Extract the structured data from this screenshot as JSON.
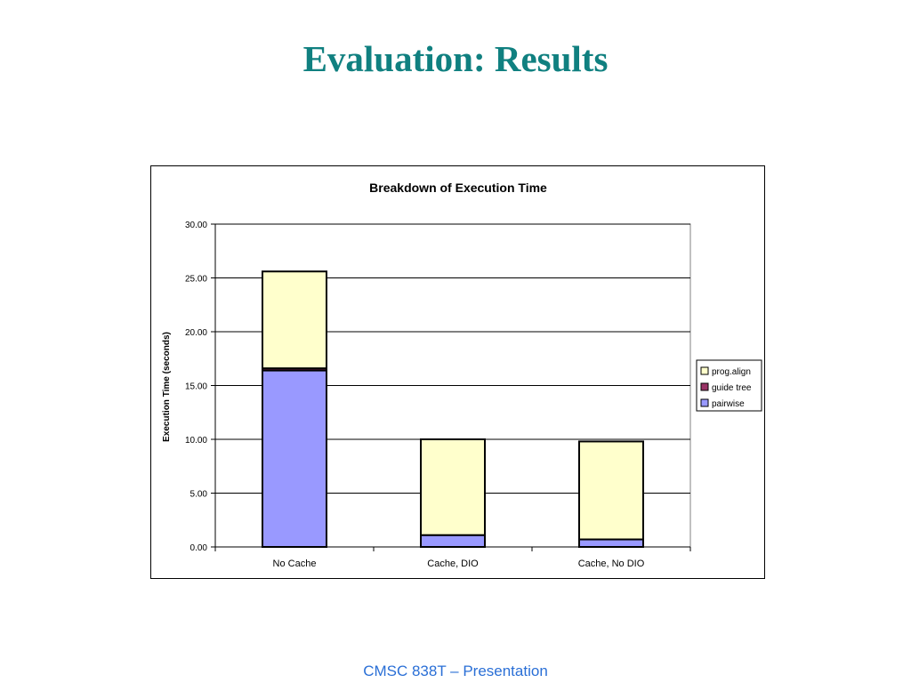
{
  "slide": {
    "title": "Evaluation: Results",
    "footer": "CMSC 838T – Presentation"
  },
  "colors": {
    "title": "#108080",
    "footer": "#2a6fd6",
    "pairwise": "#9999ff",
    "guide_tree": "#993366",
    "prog_align": "#ffffcc",
    "plot_background": "#ffffff",
    "gridline": "#000000"
  },
  "chart_data": {
    "type": "bar",
    "stacked": true,
    "title": "Breakdown of Execution Time",
    "xlabel": "",
    "ylabel": "Execution Time (seconds)",
    "ylim": [
      0,
      30
    ],
    "yticks": [
      "0.00",
      "5.00",
      "10.00",
      "15.00",
      "20.00",
      "25.00",
      "30.00"
    ],
    "grid": true,
    "legend_position": "right",
    "categories": [
      "No Cache",
      "Cache, DIO",
      "Cache, No DIO"
    ],
    "series": [
      {
        "name": "pairwise",
        "values": [
          16.4,
          1.1,
          0.7
        ]
      },
      {
        "name": "guide tree",
        "values": [
          0.2,
          0.0,
          0.0
        ]
      },
      {
        "name": "prog.align",
        "values": [
          9.0,
          8.9,
          9.1
        ]
      }
    ],
    "legend_order": [
      "prog.align",
      "guide tree",
      "pairwise"
    ]
  }
}
